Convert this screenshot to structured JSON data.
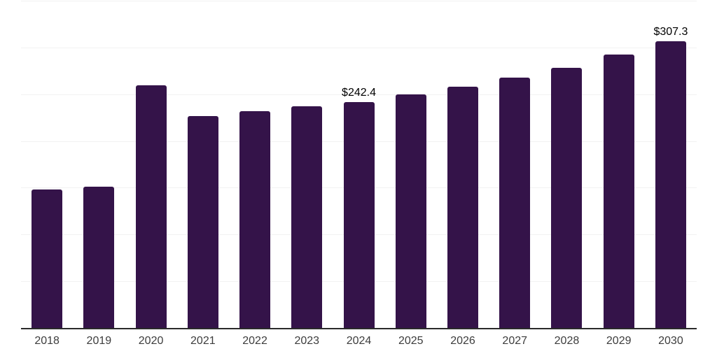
{
  "chart_data": {
    "type": "bar",
    "categories": [
      "2018",
      "2019",
      "2020",
      "2021",
      "2022",
      "2023",
      "2024",
      "2025",
      "2026",
      "2027",
      "2028",
      "2029",
      "2030"
    ],
    "values": [
      148.8,
      151.6,
      260.0,
      227.2,
      232.5,
      237.6,
      242.4,
      250.2,
      258.6,
      268.2,
      278.8,
      292.9,
      307.3
    ],
    "point_labels": [
      "",
      "",
      "",
      "",
      "",
      "",
      "$242.4",
      "",
      "",
      "",
      "",
      "",
      "$307.3"
    ],
    "title": "",
    "xlabel": "",
    "ylabel": "",
    "ylim": [
      0,
      350
    ],
    "grid_step": 50,
    "grid": true,
    "legend": false,
    "colors": {
      "bar": "#341349",
      "gridline": "#f2f2f2",
      "axis": "#2b2b2b",
      "point_label": "#000000",
      "tick_label": "#3d3d3d",
      "background": "#ffffff"
    }
  }
}
